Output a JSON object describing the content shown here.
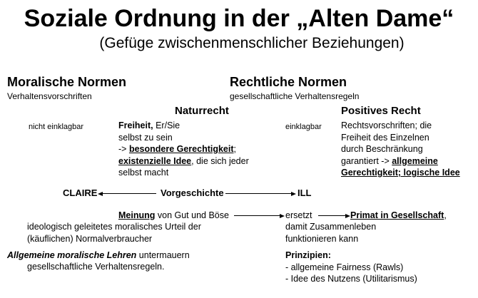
{
  "title": "Soziale Ordnung in der „Alten Dame“",
  "subtitle": "(Gefüge zwischenmenschlicher Beziehungen)",
  "left": {
    "heading": "Moralische Normen",
    "sub": "Verhaltensvorschriften",
    "label": "nicht einklagbar"
  },
  "right": {
    "heading": "Rechtliche Normen",
    "sub": "gesellschaftliche Verhaltensregeln",
    "label": "einklagbar"
  },
  "naturrecht": {
    "heading": "Naturrecht",
    "l1_bold": "Freiheit,",
    "l1_rest": " Er/Sie",
    "l2": "selbst zu sein",
    "l3_pre": "-> ",
    "l3_u": "besondere Gerechtigkeit",
    "l3_post": ";",
    "l4_u": "existenzielle Idee",
    "l4_post": ", die sich jeder",
    "l5": "selbst macht"
  },
  "positives": {
    "heading": "Positives Recht",
    "l1": "Rechtsvorschriften; die",
    "l2": "Freiheit des Einzelnen",
    "l3": "durch Beschränkung",
    "l4_pre": "garantiert -> ",
    "l4_u": "allgemeine",
    "l5_u": "Gerechtigkeit; logische Idee"
  },
  "vorgeschichte": {
    "left": "CLAIRE",
    "center": "Vorgeschichte",
    "right": "ILL"
  },
  "meinung": {
    "u": "Meinung",
    "rest": " von Gut und Böse",
    "l2": "ideologisch geleitetes moralisches Urteil der",
    "l3": "(käuflichen) Normalverbraucher",
    "ersetzt": "ersetzt",
    "primat": "Primat in Gesellschaft",
    "comma": ",",
    "r2": "damit Zusammenleben",
    "r3": "funktionieren kann"
  },
  "lehren": {
    "bi": "Allgemeine moralische Lehren",
    "rest": " untermauern",
    "l2": "gesellschaftliche Verhaltensregeln."
  },
  "prinzipien": {
    "heading": "Prinzipien:",
    "items": [
      "- allgemeine Fairness (Rawls)",
      "- Idee des Nutzens (Utilitarismus)"
    ]
  }
}
